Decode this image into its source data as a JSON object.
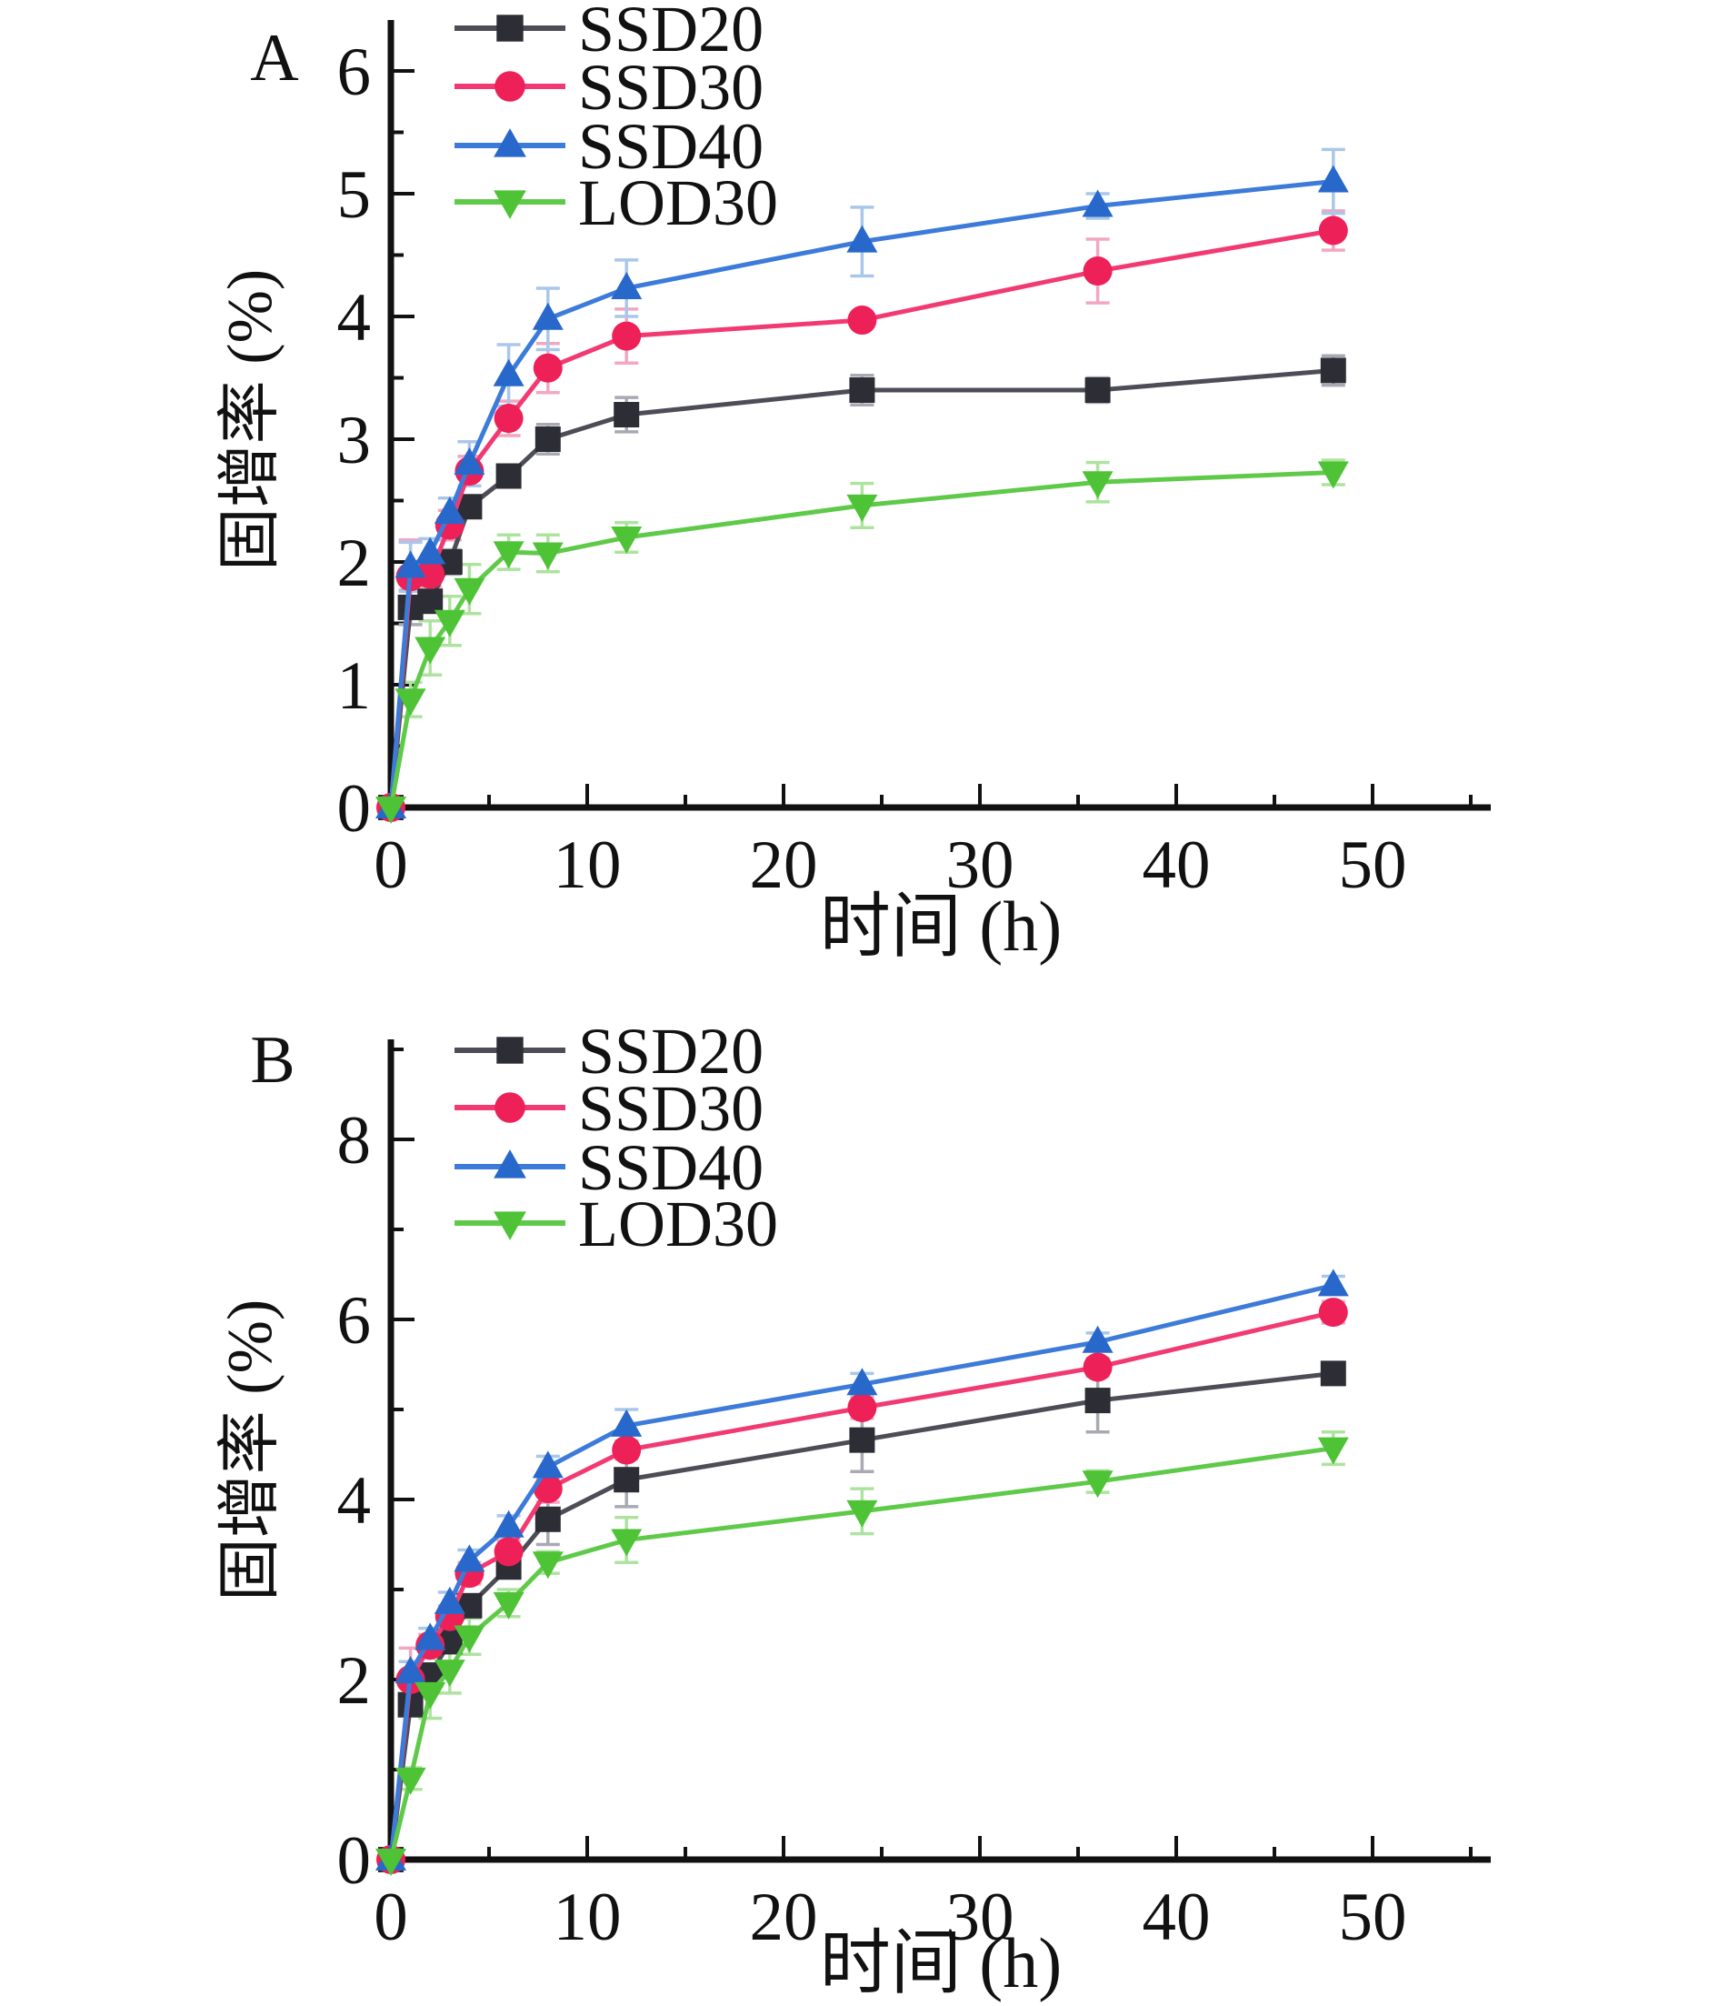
{
  "figure": {
    "background": "#ffffff",
    "panel_labels": [
      "A",
      "B"
    ]
  },
  "chart_data": [
    {
      "type": "line",
      "panel_label": "A",
      "title": "",
      "xlabel": "时间 (h)",
      "ylabel": "固增率 (%)",
      "grid": false,
      "legend_position": "upper-left-inside",
      "xlim": [
        0,
        56
      ],
      "ylim": [
        0,
        6.4
      ],
      "x_major_ticks": [
        0,
        10,
        20,
        30,
        40,
        50
      ],
      "x_minor_ticks": [
        5,
        15,
        25,
        35,
        45,
        55
      ],
      "y_major_ticks": [
        0,
        1,
        2,
        3,
        4,
        5,
        6
      ],
      "y_minor_ticks": [
        0.5,
        1.5,
        2.5,
        3.5,
        4.5,
        5.5
      ],
      "x": [
        0,
        1,
        2,
        3,
        4,
        6,
        8,
        12,
        24,
        36,
        48
      ],
      "series": [
        {
          "name": "SSD20",
          "marker": "square",
          "color": "#2d2d35",
          "line_color": "#4d4d57",
          "error_color": "#a9a9b4",
          "values": [
            0,
            1.63,
            1.68,
            2.0,
            2.45,
            2.7,
            3.0,
            3.2,
            3.4,
            3.4,
            3.56
          ],
          "errors": [
            0,
            0.14,
            0.08,
            0.1,
            0.08,
            0.08,
            0.12,
            0.14,
            0.12,
            0.1,
            0.12
          ]
        },
        {
          "name": "SSD30",
          "marker": "circle",
          "color": "#ed2058",
          "line_color": "#f23a72",
          "error_color": "#f3a6c0",
          "values": [
            0,
            1.88,
            1.9,
            2.3,
            2.74,
            3.17,
            3.58,
            3.84,
            3.97,
            4.37,
            4.7
          ],
          "errors": [
            0,
            0.3,
            0.1,
            0.12,
            0.12,
            0.14,
            0.2,
            0.22,
            0.06,
            0.26,
            0.16
          ]
        },
        {
          "name": "SSD40",
          "marker": "triangle-up",
          "color": "#2868cb",
          "line_color": "#3c7bd9",
          "error_color": "#a9c7ea",
          "values": [
            0,
            1.96,
            2.07,
            2.4,
            2.8,
            3.52,
            3.98,
            4.23,
            4.61,
            4.9,
            5.1
          ],
          "errors": [
            0,
            0.2,
            0.12,
            0.12,
            0.18,
            0.25,
            0.25,
            0.23,
            0.28,
            0.1,
            0.26
          ]
        },
        {
          "name": "LOD30",
          "marker": "triangle-down",
          "color": "#4ec336",
          "line_color": "#5fca49",
          "error_color": "#aee39f",
          "values": [
            0,
            0.88,
            1.3,
            1.52,
            1.78,
            2.08,
            2.07,
            2.2,
            2.46,
            2.65,
            2.73
          ],
          "errors": [
            0,
            0.14,
            0.22,
            0.2,
            0.2,
            0.14,
            0.15,
            0.12,
            0.18,
            0.16,
            0.1
          ]
        }
      ]
    },
    {
      "type": "line",
      "panel_label": "B",
      "title": "",
      "xlabel": "时间 (h)",
      "ylabel": "固增率 (%)",
      "grid": false,
      "legend_position": "upper-left-inside",
      "xlim": [
        0,
        56
      ],
      "ylim": [
        0,
        9.1
      ],
      "x_major_ticks": [
        0,
        10,
        20,
        30,
        40,
        50
      ],
      "x_minor_ticks": [
        5,
        15,
        25,
        35,
        45,
        55
      ],
      "y_major_ticks": [
        0,
        2,
        4,
        6,
        8
      ],
      "y_minor_ticks": [
        1,
        3,
        5,
        7,
        9
      ],
      "x": [
        0,
        1,
        2,
        3,
        4,
        6,
        8,
        12,
        24,
        36,
        48
      ],
      "series": [
        {
          "name": "SSD20",
          "marker": "square",
          "color": "#2d2d35",
          "line_color": "#4d4d57",
          "error_color": "#a9a9b4",
          "values": [
            0,
            1.72,
            2.05,
            2.42,
            2.82,
            3.25,
            3.78,
            4.22,
            4.66,
            5.1,
            5.4
          ],
          "errors": [
            0,
            0.12,
            0.1,
            0.1,
            0.1,
            0.1,
            0.28,
            0.3,
            0.35,
            0.35,
            0.08
          ]
        },
        {
          "name": "SSD30",
          "marker": "circle",
          "color": "#ed2058",
          "line_color": "#f23a72",
          "error_color": "#f3a6c0",
          "values": [
            0,
            2.0,
            2.38,
            2.7,
            3.18,
            3.42,
            4.12,
            4.55,
            5.02,
            5.47,
            6.08
          ],
          "errors": [
            0,
            0.35,
            0.12,
            0.12,
            0.12,
            0.12,
            0.15,
            0.1,
            0.12,
            0.1,
            0.12
          ]
        },
        {
          "name": "SSD40",
          "marker": "triangle-up",
          "color": "#2868cb",
          "line_color": "#3c7bd9",
          "error_color": "#a9c7ea",
          "values": [
            0,
            2.08,
            2.45,
            2.85,
            3.32,
            3.7,
            4.36,
            4.82,
            5.28,
            5.75,
            6.38
          ],
          "errors": [
            0,
            0.12,
            0.12,
            0.12,
            0.12,
            0.12,
            0.12,
            0.18,
            0.12,
            0.1,
            0.1
          ]
        },
        {
          "name": "LOD30",
          "marker": "triangle-down",
          "color": "#4ec336",
          "line_color": "#5fca49",
          "error_color": "#aee39f",
          "values": [
            0,
            0.9,
            1.85,
            2.1,
            2.48,
            2.85,
            3.3,
            3.55,
            3.87,
            4.2,
            4.57
          ],
          "errors": [
            0,
            0.12,
            0.28,
            0.25,
            0.2,
            0.15,
            0.12,
            0.25,
            0.25,
            0.12,
            0.18
          ]
        }
      ]
    }
  ]
}
